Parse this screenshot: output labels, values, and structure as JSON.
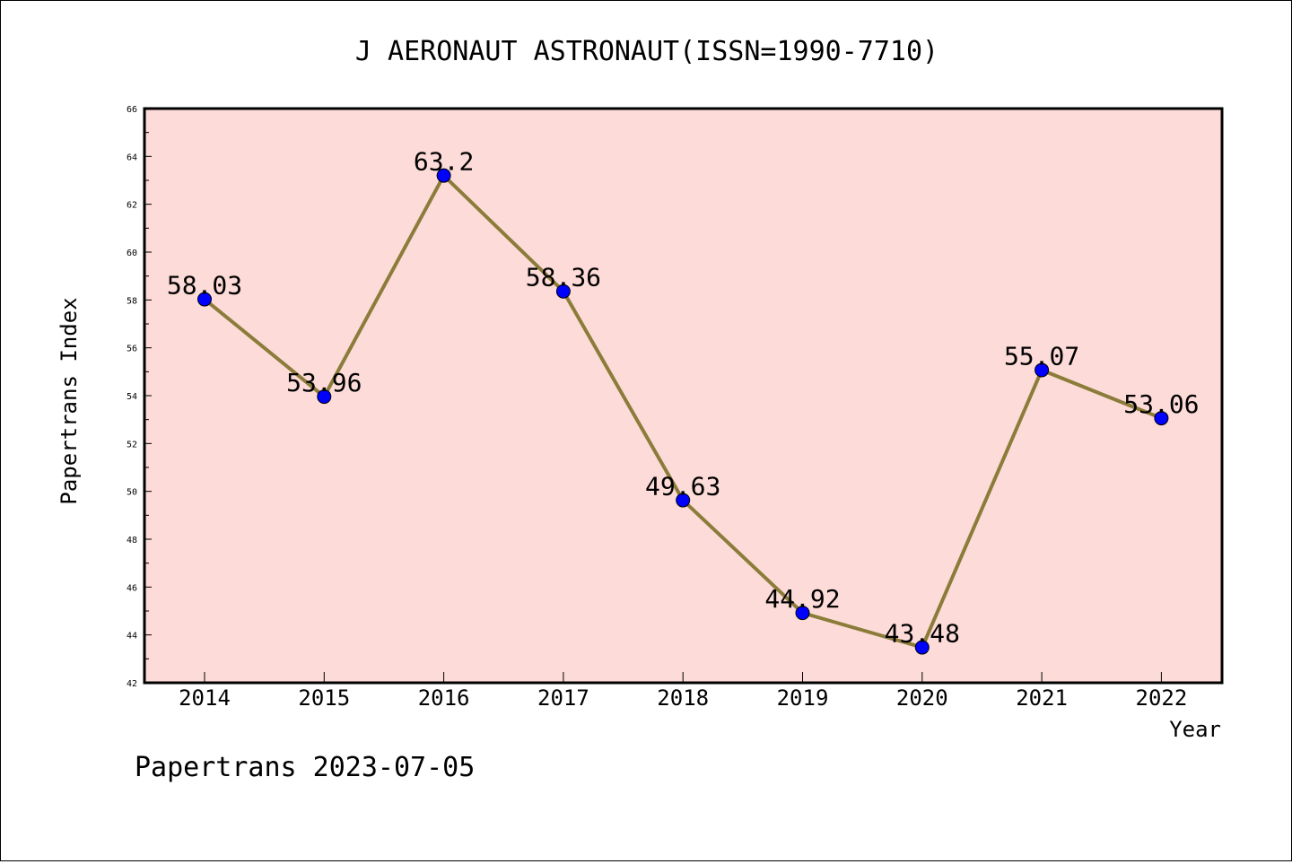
{
  "chart_data": {
    "type": "line",
    "title": "J AERONAUT ASTRONAUT(ISSN=1990-7710)",
    "xlabel": "Year",
    "ylabel": "Papertrans Index",
    "categories": [
      "2014",
      "2015",
      "2016",
      "2017",
      "2018",
      "2019",
      "2020",
      "2021",
      "2022"
    ],
    "series": [
      {
        "values": [
          58.03,
          53.96,
          63.2,
          58.36,
          49.63,
          44.92,
          43.48,
          55.07,
          53.06
        ]
      }
    ],
    "data_labels": [
      "58.03",
      "53.96",
      "63.2",
      "58.36",
      "49.63",
      "44.92",
      "43.48",
      "55.07",
      "53.06"
    ],
    "ylim": [
      42,
      66
    ],
    "y_ticks": [
      42,
      44,
      46,
      48,
      50,
      52,
      54,
      56,
      58,
      60,
      62,
      64,
      66
    ],
    "y_tick_labels": [
      "42",
      "44",
      "46",
      "48",
      "50",
      "52",
      "54",
      "56",
      "58",
      "60",
      "62",
      "64",
      "66"
    ],
    "grid": false,
    "legend": "none",
    "colors": {
      "plot_background": "#fddbd8",
      "line": "#8b7c3a",
      "marker": "#0000ff",
      "axes": "#000000"
    }
  },
  "footer": {
    "text": "Papertrans 2023-07-05"
  }
}
